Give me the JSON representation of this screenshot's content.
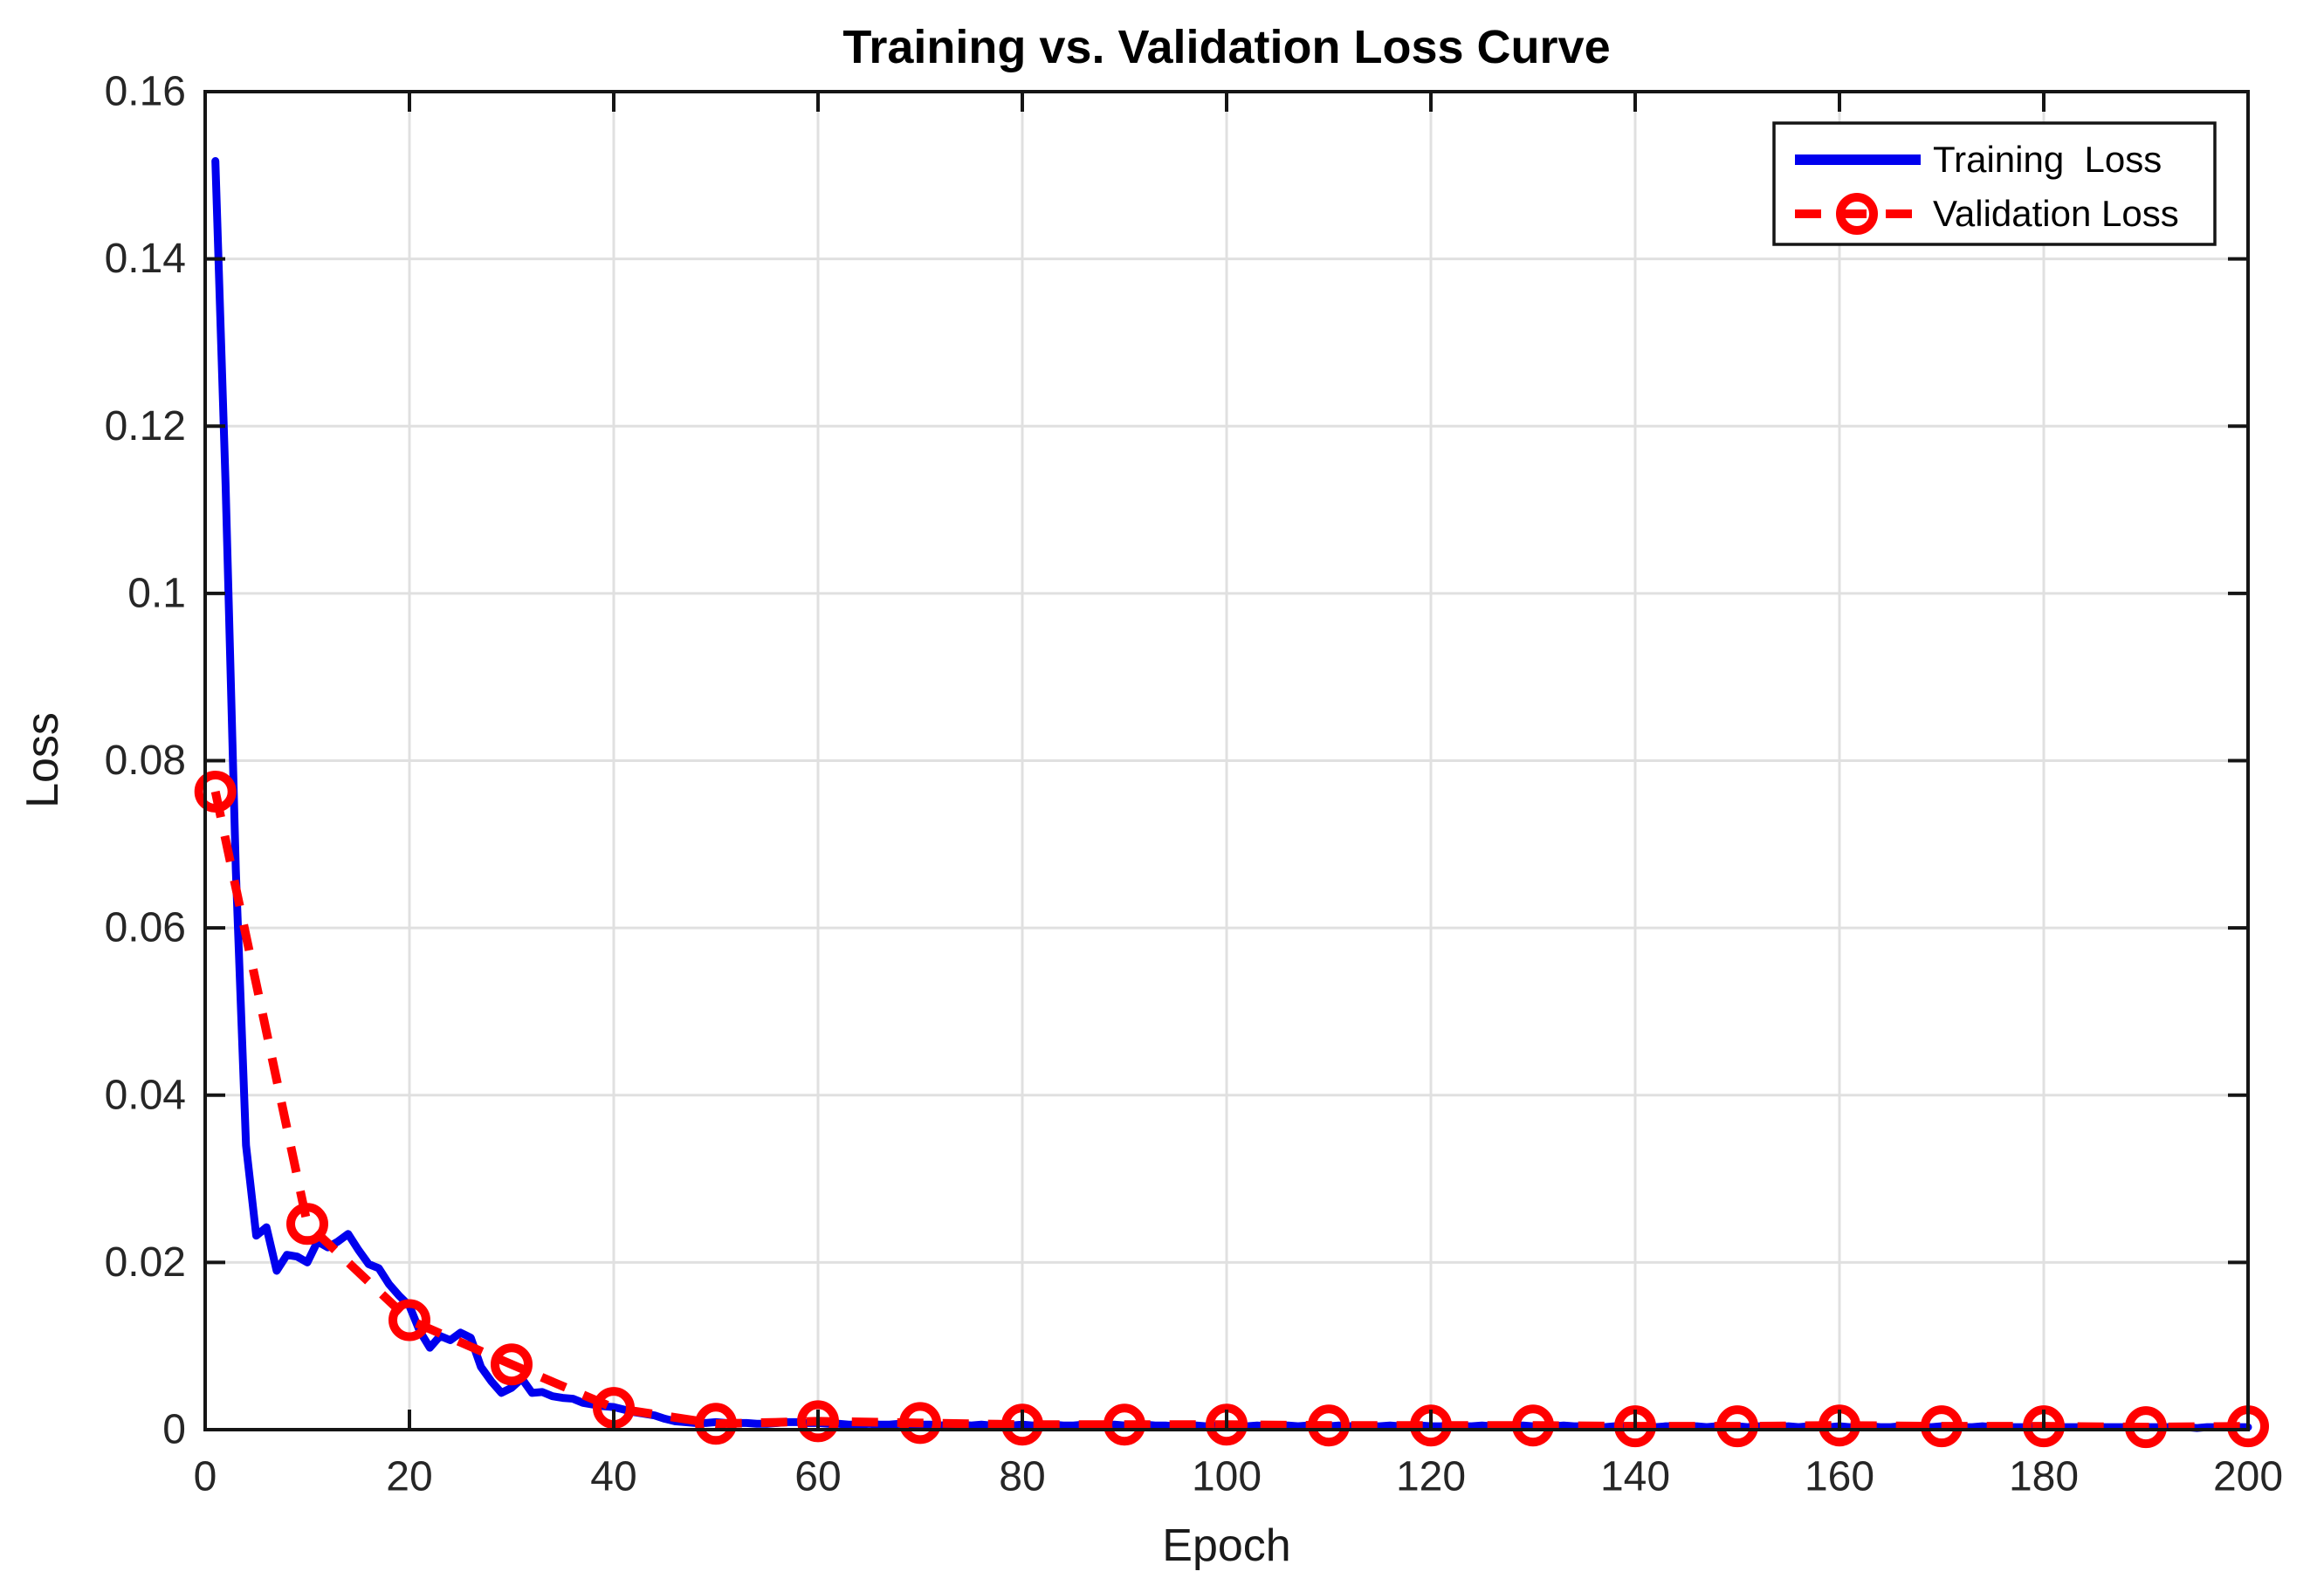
{
  "chart_data": {
    "type": "line",
    "title": "Training vs. Validation Loss Curve",
    "xlabel": "Epoch",
    "ylabel": "Loss",
    "xlim": [
      0,
      200
    ],
    "ylim": [
      0,
      0.16
    ],
    "xticks": [
      0,
      20,
      40,
      60,
      80,
      100,
      120,
      140,
      160,
      180,
      200
    ],
    "xtick_labels": [
      "0",
      "20",
      "40",
      "60",
      "80",
      "100",
      "120",
      "140",
      "160",
      "180",
      "200"
    ],
    "yticks": [
      0,
      0.02,
      0.04,
      0.06,
      0.08,
      0.1,
      0.12,
      0.14,
      0.16
    ],
    "ytick_labels": [
      "0",
      "0.02",
      "0.04",
      "0.06",
      "0.08",
      "0.1",
      "0.12",
      "0.14",
      "0.16"
    ],
    "grid": true,
    "legend": {
      "position": "top-right",
      "entries": [
        {
          "label": "Training  Loss",
          "color": "#0000EE",
          "style": "solid"
        },
        {
          "label": "Validation Loss",
          "color": "#FF0000",
          "style": "dashed-circle-marker"
        }
      ]
    },
    "colors": {
      "training": "#0000EE",
      "validation": "#FF0000",
      "grid": "#E0E0E0",
      "axis": "#151515",
      "tick_text": "#262626"
    },
    "series": [
      {
        "name": "Training Loss",
        "color": "#0000EE",
        "line_style": "solid",
        "marker": "none",
        "x_start": 1,
        "x_step": 1,
        "values": [
          0.1517,
          0.113,
          0.067,
          0.034,
          0.0232,
          0.0242,
          0.019,
          0.0209,
          0.0207,
          0.02,
          0.0225,
          0.0218,
          0.0225,
          0.0234,
          0.0215,
          0.0198,
          0.0193,
          0.0174,
          0.016,
          0.0148,
          0.0118,
          0.0098,
          0.0112,
          0.0107,
          0.0116,
          0.011,
          0.0075,
          0.0058,
          0.0044,
          0.005,
          0.0061,
          0.0044,
          0.0045,
          0.004,
          0.0038,
          0.0037,
          0.0032,
          0.003,
          0.0028,
          0.0027,
          0.0024,
          0.0021,
          0.0019,
          0.0017,
          0.0013,
          0.001,
          0.0009,
          0.0008,
          0.0008,
          0.0009,
          0.0008,
          0.0008,
          0.0008,
          0.0007,
          0.0007,
          0.0008,
          0.0009,
          0.0009,
          0.0008,
          0.0008,
          0.0007,
          0.0007,
          0.0006,
          0.0006,
          0.0007,
          0.0006,
          0.0006,
          0.0007,
          0.0006,
          0.0006,
          0.0006,
          0.0005,
          0.0006,
          0.0006,
          0.0005,
          0.0006,
          0.0005,
          0.0006,
          0.0005,
          0.0006,
          0.0005,
          0.0005,
          0.0006,
          0.0005,
          0.0005,
          0.0006,
          0.0005,
          0.0005,
          0.0006,
          0.0005,
          0.0005,
          0.0006,
          0.0005,
          0.0005,
          0.0004,
          0.0005,
          0.0005,
          0.0004,
          0.0005,
          0.0005,
          0.0005,
          0.0004,
          0.0005,
          0.0004,
          0.0005,
          0.0005,
          0.0004,
          0.0005,
          0.0004,
          0.0004,
          0.0005,
          0.0004,
          0.0005,
          0.0004,
          0.0004,
          0.0005,
          0.0004,
          0.0004,
          0.0005,
          0.0004,
          0.0004,
          0.0005,
          0.0004,
          0.0004,
          0.0005,
          0.0004,
          0.0004,
          0.0004,
          0.0005,
          0.0004,
          0.0004,
          0.0004,
          0.0005,
          0.0004,
          0.0004,
          0.0004,
          0.0003,
          0.0004,
          0.0004,
          0.0003,
          0.0004,
          0.0003,
          0.0004,
          0.0004,
          0.0003,
          0.0004,
          0.0003,
          0.0004,
          0.0003,
          0.0004,
          0.0003,
          0.0004,
          0.0003,
          0.0003,
          0.0004,
          0.0003,
          0.0004,
          0.0003,
          0.0003,
          0.0004,
          0.0003,
          0.0003,
          0.0004,
          0.0003,
          0.0003,
          0.0004,
          0.0003,
          0.0003,
          0.0003,
          0.0004,
          0.0003,
          0.0003,
          0.0003,
          0.0004,
          0.0003,
          0.0003,
          0.0003,
          0.0003,
          0.0004,
          0.0003,
          0.0003,
          0.0003,
          0.0003,
          0.0003,
          0.0003,
          0.0003,
          0.0003,
          0.0003,
          0.0003,
          0.0003,
          0.0003,
          0.0003,
          0.0003,
          0.0003,
          0.0002,
          0.0003,
          0.0003,
          0.0003,
          0.0003,
          0.0003
        ]
      },
      {
        "name": "Validation Loss",
        "color": "#FF0000",
        "line_style": "dashed",
        "marker": "circle",
        "x": [
          1,
          10,
          20,
          30,
          40,
          50,
          60,
          70,
          80,
          90,
          100,
          110,
          120,
          130,
          140,
          150,
          160,
          170,
          180,
          190,
          200
        ],
        "values": [
          0.0763,
          0.0246,
          0.0131,
          0.0078,
          0.0026,
          0.0007,
          0.001,
          0.0008,
          0.0006,
          0.0006,
          0.0006,
          0.0005,
          0.0005,
          0.0005,
          0.0004,
          0.0004,
          0.0005,
          0.0004,
          0.0004,
          0.0003,
          0.0004
        ]
      }
    ]
  }
}
